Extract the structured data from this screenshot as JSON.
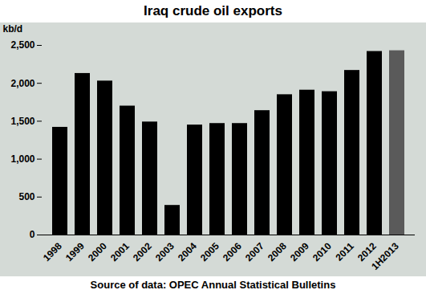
{
  "chart_data": {
    "type": "bar",
    "title": "Iraq crude oil exports",
    "y_label": "kb/d",
    "caption": "Source of data: OPEC Annual Statistical Bulletins",
    "categories": [
      "1998",
      "1999",
      "2000",
      "2001",
      "2002",
      "2003",
      "2004",
      "2005",
      "2006",
      "2007",
      "2008",
      "2009",
      "2010",
      "2011",
      "2012",
      "1H2013"
    ],
    "values": [
      1420,
      2130,
      2030,
      1700,
      1490,
      390,
      1450,
      1470,
      1470,
      1640,
      1850,
      1910,
      1890,
      2170,
      2420,
      2430
    ],
    "colors": [
      "#000000",
      "#000000",
      "#000000",
      "#000000",
      "#000000",
      "#000000",
      "#000000",
      "#000000",
      "#000000",
      "#000000",
      "#000000",
      "#000000",
      "#000000",
      "#000000",
      "#000000",
      "#5a5a5a"
    ],
    "ylim": [
      0,
      2500
    ],
    "yticks": [
      0,
      500,
      {
        "value": 1000,
        "label": "1,000"
      },
      {
        "value": 1500,
        "label": "1,500"
      },
      {
        "value": 2000,
        "label": "2,000"
      },
      {
        "value": 2500,
        "label": "2,500"
      }
    ],
    "grid": false
  }
}
